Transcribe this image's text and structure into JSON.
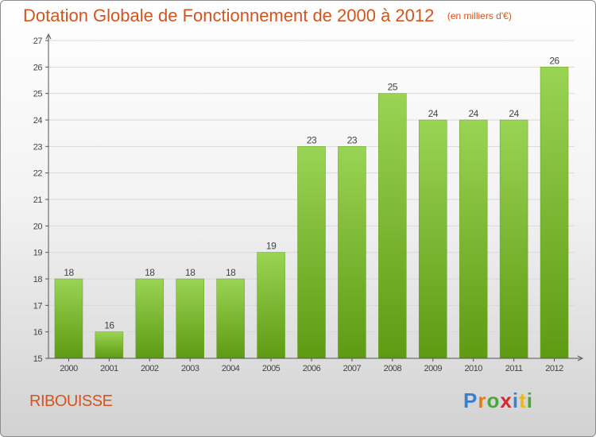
{
  "chart_title": "Dotation Globale de Fonctionnement de 2000 à 2012",
  "chart_subtitle": "(en milliers d'€)",
  "place_name": "RIBOUISSE",
  "logo_text": "Proxiti",
  "colors": {
    "title": "#d2541f",
    "bar_light": "#9ad454",
    "bar_dark": "#5e9a12",
    "axis": "#555555",
    "grid": "#d9d9d9"
  },
  "chart_data": {
    "type": "bar",
    "title": "Dotation Globale de Fonctionnement de 2000 à 2012",
    "subtitle": "(en milliers d'€)",
    "categories": [
      "2000",
      "2001",
      "2002",
      "2003",
      "2004",
      "2005",
      "2006",
      "2007",
      "2008",
      "2009",
      "2010",
      "2011",
      "2012"
    ],
    "values": [
      18,
      16,
      18,
      18,
      18,
      19,
      23,
      23,
      25,
      24,
      24,
      24,
      26
    ],
    "data_labels": [
      "18",
      "16",
      "18",
      "18",
      "18",
      "19",
      "23",
      "23",
      "25",
      "24",
      "24",
      "24",
      "26"
    ],
    "yticks": [
      "15",
      "16",
      "17",
      "18",
      "19",
      "20",
      "21",
      "22",
      "23",
      "24",
      "25",
      "26",
      "27"
    ],
    "ylim": [
      15,
      27
    ],
    "grid": true,
    "xlabel": "",
    "ylabel": ""
  }
}
